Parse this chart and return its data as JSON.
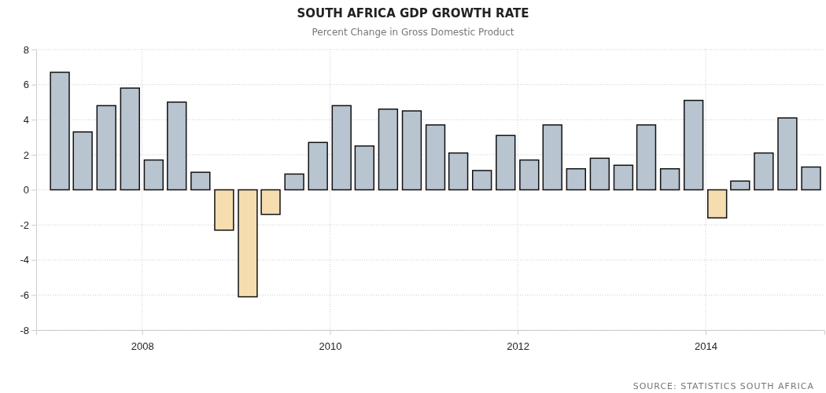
{
  "chart_data": {
    "type": "bar",
    "title": "SOUTH AFRICA GDP GROWTH RATE",
    "subtitle": "Percent Change in Gross Domestic Product",
    "x": [
      "2007-02-15",
      "2007-05-15",
      "2007-08-15",
      "2007-11-15",
      "2008-02-15",
      "2008-05-15",
      "2008-08-15",
      "2008-11-15",
      "2009-02-15",
      "2009-05-15",
      "2009-08-15",
      "2009-11-15",
      "2010-02-15",
      "2010-05-15",
      "2010-08-15",
      "2010-11-15",
      "2011-02-15",
      "2011-05-15",
      "2011-08-15",
      "2011-11-15",
      "2012-02-15",
      "2012-05-15",
      "2012-08-15",
      "2012-11-15",
      "2013-02-15",
      "2013-05-15",
      "2013-08-15",
      "2013-11-15",
      "2014-02-15",
      "2014-05-15",
      "2014-08-15",
      "2014-11-15",
      "2015-02-15"
    ],
    "values": [
      6.7,
      3.3,
      4.8,
      5.8,
      1.7,
      5.0,
      1.0,
      -2.3,
      -6.1,
      -1.4,
      0.9,
      2.7,
      4.8,
      2.5,
      4.6,
      4.5,
      3.7,
      2.1,
      1.1,
      3.1,
      1.7,
      3.7,
      1.2,
      1.8,
      1.4,
      3.7,
      1.2,
      5.1,
      -1.6,
      0.5,
      2.1,
      4.1,
      1.3
    ],
    "colors": [
      "#b8c4d0",
      "#b8c4d0",
      "#b8c4d0",
      "#b8c4d0",
      "#b8c4d0",
      "#b8c4d0",
      "#b8c4d0",
      "#f5ddb0",
      "#f5ddb0",
      "#f5ddb0",
      "#b8c4d0",
      "#b8c4d0",
      "#b8c4d0",
      "#b8c4d0",
      "#b8c4d0",
      "#b8c4d0",
      "#b8c4d0",
      "#b8c4d0",
      "#b8c4d0",
      "#b8c4d0",
      "#b8c4d0",
      "#b8c4d0",
      "#b8c4d0",
      "#b8c4d0",
      "#b8c4d0",
      "#b8c4d0",
      "#b8c4d0",
      "#b8c4d0",
      "#f5ddb0",
      "#b8c4d0",
      "#b8c4d0",
      "#b8c4d0",
      "#b8c4d0"
    ],
    "xlim": [
      "2006-11-15",
      "2015-04-08"
    ],
    "xticks": [
      "2008",
      "2010",
      "2012",
      "2014"
    ],
    "ylim": [
      -8,
      8
    ],
    "yticks": [
      -8,
      -6,
      -4,
      -2,
      0,
      2,
      4,
      6,
      8
    ],
    "grid": true,
    "annotations": [
      "SOURCE: STATISTICS SOUTH AFRICA"
    ]
  }
}
